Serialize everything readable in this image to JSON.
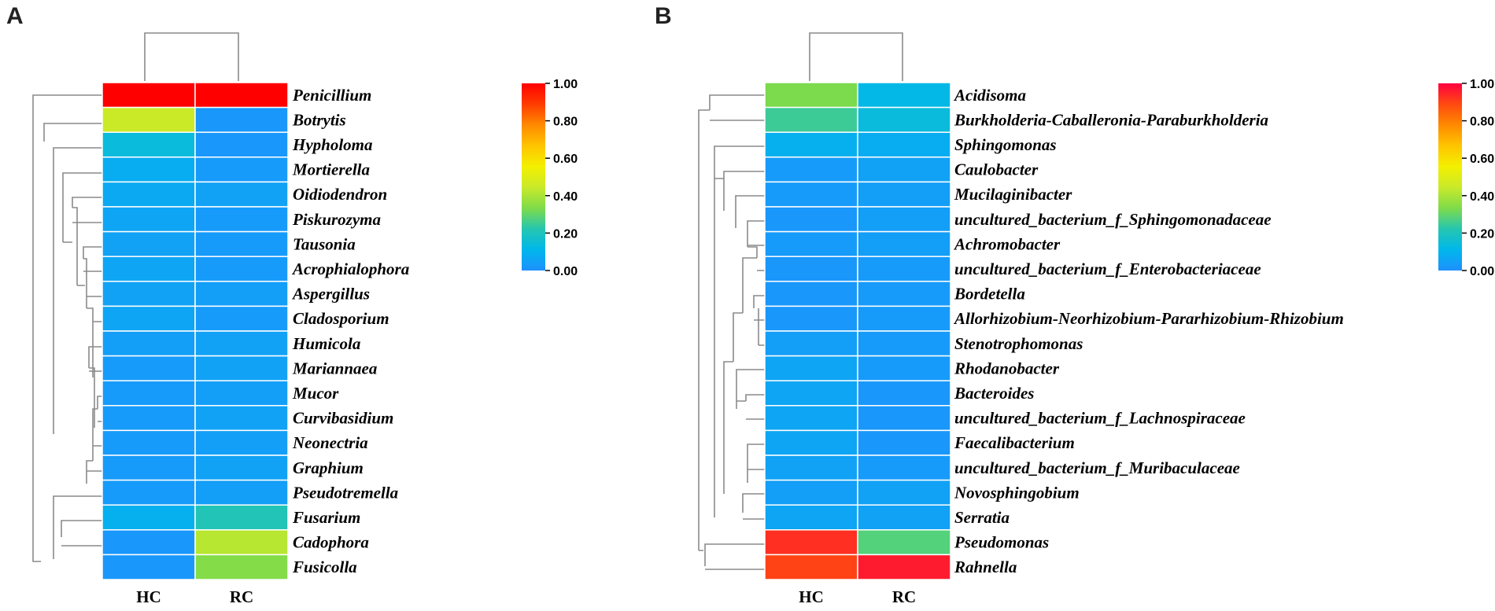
{
  "colors": {
    "scale": [
      "#1e90ff",
      "#00b7eb",
      "#25c6b0",
      "#7fdb4a",
      "#c8ea2a",
      "#f3f000",
      "#ffc400",
      "#ff8a00",
      "#ff3c00",
      "#ff0000"
    ]
  },
  "chart_data": [
    {
      "type": "heatmap",
      "panel": "A",
      "columns": [
        "HC",
        "RC"
      ],
      "rows": [
        "Penicillium",
        "Botrytis",
        "Hypholoma",
        "Mortierella",
        "Oidiodendron",
        "Piskurozyma",
        "Tausonia",
        "Acrophialophora",
        "Aspergillus",
        "Cladosporium",
        "Humicola",
        "Mariannaea",
        "Mucor",
        "Curvibasidium",
        "Neonectria",
        "Graphium",
        "Pseudotremella",
        "Fusarium",
        "Cadophora",
        "Fusicolla"
      ],
      "values": [
        [
          1.0,
          1.0
        ],
        [
          0.45,
          0.02
        ],
        [
          0.14,
          0.02
        ],
        [
          0.08,
          0.03
        ],
        [
          0.07,
          0.05
        ],
        [
          0.06,
          0.03
        ],
        [
          0.05,
          0.03
        ],
        [
          0.06,
          0.03
        ],
        [
          0.05,
          0.04
        ],
        [
          0.06,
          0.03
        ],
        [
          0.04,
          0.05
        ],
        [
          0.03,
          0.05
        ],
        [
          0.03,
          0.04
        ],
        [
          0.03,
          0.05
        ],
        [
          0.03,
          0.04
        ],
        [
          0.03,
          0.05
        ],
        [
          0.03,
          0.04
        ],
        [
          0.09,
          0.21
        ],
        [
          0.02,
          0.42
        ],
        [
          0.02,
          0.34
        ]
      ],
      "colorbar": {
        "range": [
          0,
          1
        ],
        "ticks": [
          "0.00",
          "0.20",
          "0.40",
          "0.60",
          "0.80",
          "1.00"
        ],
        "colors": [
          "#1e90ff",
          "#00b7eb",
          "#25c6b0",
          "#7fdb4a",
          "#c8ea2a",
          "#f3f000",
          "#ffc400",
          "#ff8a00",
          "#ff3c00",
          "#ff0000"
        ]
      }
    },
    {
      "type": "heatmap",
      "panel": "B",
      "columns": [
        "HC",
        "RC"
      ],
      "rows": [
        "Acidisoma",
        "Burkholderia-Caballeronia-Paraburkholderia",
        "Sphingomonas",
        "Caulobacter",
        "Mucilaginibacter",
        "uncultured_bacterium_f_Sphingomonadaceae",
        "Achromobacter",
        "uncultured_bacterium_f_Enterobacteriaceae",
        "Bordetella",
        "Allorhizobium-Neorhizobium-Pararhizobium-Rhizobium",
        "Stenotrophomonas",
        "Rhodanobacter",
        "Bacteroides",
        "uncultured_bacterium_f_Lachnospiraceae",
        "Faecalibacterium",
        "uncultured_bacterium_f_Muribaculaceae",
        "Novosphingobium",
        "Serratia",
        "Pseudomonas",
        "Rahnella"
      ],
      "values": [
        [
          0.33,
          0.12
        ],
        [
          0.25,
          0.14
        ],
        [
          0.09,
          0.08
        ],
        [
          0.03,
          0.05
        ],
        [
          0.03,
          0.04
        ],
        [
          0.02,
          0.04
        ],
        [
          0.03,
          0.04
        ],
        [
          0.02,
          0.03
        ],
        [
          0.02,
          0.03
        ],
        [
          0.02,
          0.03
        ],
        [
          0.04,
          0.03
        ],
        [
          0.06,
          0.03
        ],
        [
          0.06,
          0.02
        ],
        [
          0.06,
          0.02
        ],
        [
          0.06,
          0.02
        ],
        [
          0.05,
          0.03
        ],
        [
          0.04,
          0.05
        ],
        [
          0.06,
          0.05
        ],
        [
          0.93,
          0.28
        ],
        [
          0.9,
          0.96
        ]
      ],
      "colorbar": {
        "range": [
          0,
          1
        ],
        "ticks": [
          "0.00",
          "0.20",
          "0.40",
          "0.60",
          "0.80",
          "1.00"
        ],
        "colors": [
          "#1e90ff",
          "#00b7eb",
          "#25c6b0",
          "#7fdb4a",
          "#c8ea2a",
          "#f3f000",
          "#ffc400",
          "#ff8a00",
          "#ff4a10",
          "#ff0040"
        ]
      }
    }
  ]
}
